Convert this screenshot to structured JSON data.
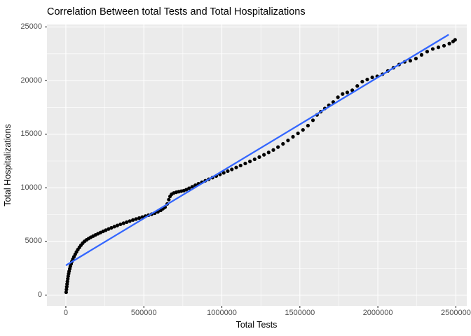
{
  "chart_data": {
    "type": "scatter",
    "title": "Correlation Between total Tests and Total Hospitalizations",
    "xlabel": "Total Tests",
    "ylabel": "Total Hospitalizations",
    "xlim": [
      -121000,
      2570000
    ],
    "ylim": [
      -1010,
      25230
    ],
    "grid": true,
    "legend_position": "none",
    "x_ticks": [
      {
        "value": 0,
        "label": "0"
      },
      {
        "value": 500000,
        "label": "500000"
      },
      {
        "value": 1000000,
        "label": "1000000"
      },
      {
        "value": 1500000,
        "label": "1500000"
      },
      {
        "value": 2000000,
        "label": "2000000"
      },
      {
        "value": 2500000,
        "label": "2500000"
      }
    ],
    "y_ticks": [
      {
        "value": 0,
        "label": "0"
      },
      {
        "value": 5000,
        "label": "5000"
      },
      {
        "value": 10000,
        "label": "10000"
      },
      {
        "value": 15000,
        "label": "15000"
      },
      {
        "value": 20000,
        "label": "20000"
      },
      {
        "value": 25000,
        "label": "25000"
      }
    ],
    "x_minor_ticks": [
      250000,
      750000,
      1250000,
      1750000,
      2250000
    ],
    "y_minor_ticks": [
      2500,
      7500,
      12500,
      17500,
      22500
    ],
    "colors": {
      "figure_background": "#FFFFFF",
      "panel_background": "#EBEBEB",
      "grid": "#FFFFFF",
      "axis_text": "#4D4D4D",
      "tick_marks": "#333333",
      "point": "#000000",
      "trend_line": "#3366FF"
    },
    "series": [
      {
        "name": "observations",
        "kind": "points",
        "color": "#000000",
        "points": [
          [
            2000,
            260
          ],
          [
            4000,
            520
          ],
          [
            6000,
            780
          ],
          [
            8000,
            1030
          ],
          [
            10000,
            1270
          ],
          [
            12500,
            1520
          ],
          [
            15000,
            1760
          ],
          [
            18000,
            1990
          ],
          [
            21000,
            2210
          ],
          [
            25000,
            2450
          ],
          [
            29000,
            2680
          ],
          [
            34000,
            2910
          ],
          [
            39000,
            3130
          ],
          [
            45000,
            3350
          ],
          [
            52000,
            3570
          ],
          [
            60000,
            3800
          ],
          [
            68000,
            4020
          ],
          [
            77000,
            4240
          ],
          [
            87000,
            4450
          ],
          [
            97000,
            4650
          ],
          [
            108000,
            4840
          ],
          [
            120000,
            5010
          ],
          [
            133000,
            5150
          ],
          [
            146000,
            5270
          ],
          [
            160000,
            5390
          ],
          [
            175000,
            5500
          ],
          [
            190000,
            5610
          ],
          [
            206000,
            5720
          ],
          [
            222000,
            5830
          ],
          [
            239000,
            5940
          ],
          [
            256000,
            6050
          ],
          [
            274000,
            6160
          ],
          [
            292000,
            6270
          ],
          [
            311000,
            6380
          ],
          [
            330000,
            6490
          ],
          [
            350000,
            6600
          ],
          [
            370000,
            6700
          ],
          [
            390000,
            6800
          ],
          [
            410000,
            6900
          ],
          [
            430000,
            7000
          ],
          [
            450000,
            7090
          ],
          [
            470000,
            7180
          ],
          [
            490000,
            7270
          ],
          [
            510000,
            7360
          ],
          [
            530000,
            7450
          ],
          [
            550000,
            7540
          ],
          [
            570000,
            7640
          ],
          [
            590000,
            7760
          ],
          [
            608000,
            7900
          ],
          [
            622000,
            8050
          ],
          [
            636000,
            8200
          ],
          [
            650000,
            8500
          ],
          [
            660000,
            8900
          ],
          [
            668000,
            9200
          ],
          [
            678000,
            9400
          ],
          [
            692000,
            9520
          ],
          [
            708000,
            9590
          ],
          [
            724000,
            9640
          ],
          [
            740000,
            9690
          ],
          [
            756000,
            9740
          ],
          [
            772000,
            9830
          ],
          [
            790000,
            9960
          ],
          [
            810000,
            10100
          ],
          [
            830000,
            10240
          ],
          [
            850000,
            10380
          ],
          [
            872000,
            10520
          ],
          [
            894000,
            10660
          ],
          [
            916000,
            10800
          ],
          [
            940000,
            10950
          ],
          [
            964000,
            11100
          ],
          [
            988000,
            11250
          ],
          [
            1012000,
            11400
          ],
          [
            1038000,
            11560
          ],
          [
            1064000,
            11720
          ],
          [
            1092000,
            11900
          ],
          [
            1120000,
            12080
          ],
          [
            1150000,
            12270
          ],
          [
            1180000,
            12460
          ],
          [
            1210000,
            12660
          ],
          [
            1240000,
            12870
          ],
          [
            1270000,
            13080
          ],
          [
            1300000,
            13300
          ],
          [
            1330000,
            13530
          ],
          [
            1360000,
            13800
          ],
          [
            1392000,
            14100
          ],
          [
            1424000,
            14420
          ],
          [
            1456000,
            14760
          ],
          [
            1488000,
            15080
          ],
          [
            1520000,
            15400
          ],
          [
            1552000,
            15800
          ],
          [
            1584000,
            16300
          ],
          [
            1610000,
            16800
          ],
          [
            1634000,
            17100
          ],
          [
            1660000,
            17400
          ],
          [
            1686000,
            17700
          ],
          [
            1714000,
            18000
          ],
          [
            1744000,
            18450
          ],
          [
            1774000,
            18750
          ],
          [
            1804000,
            18900
          ],
          [
            1836000,
            19100
          ],
          [
            1868000,
            19500
          ],
          [
            1900000,
            19900
          ],
          [
            1932000,
            20100
          ],
          [
            1964000,
            20300
          ],
          [
            1996000,
            20400
          ],
          [
            2030000,
            20600
          ],
          [
            2064000,
            20900
          ],
          [
            2100000,
            21200
          ],
          [
            2136000,
            21500
          ],
          [
            2172000,
            21750
          ],
          [
            2208000,
            21850
          ],
          [
            2244000,
            22050
          ],
          [
            2280000,
            22400
          ],
          [
            2316000,
            22700
          ],
          [
            2352000,
            22950
          ],
          [
            2388000,
            23100
          ],
          [
            2424000,
            23250
          ],
          [
            2458000,
            23450
          ],
          [
            2482000,
            23650
          ],
          [
            2495000,
            23800
          ]
        ]
      },
      {
        "name": "linear-fit",
        "kind": "line",
        "color": "#3366FF",
        "points": [
          [
            4000,
            2800
          ],
          [
            2450000,
            24250
          ]
        ]
      }
    ]
  }
}
